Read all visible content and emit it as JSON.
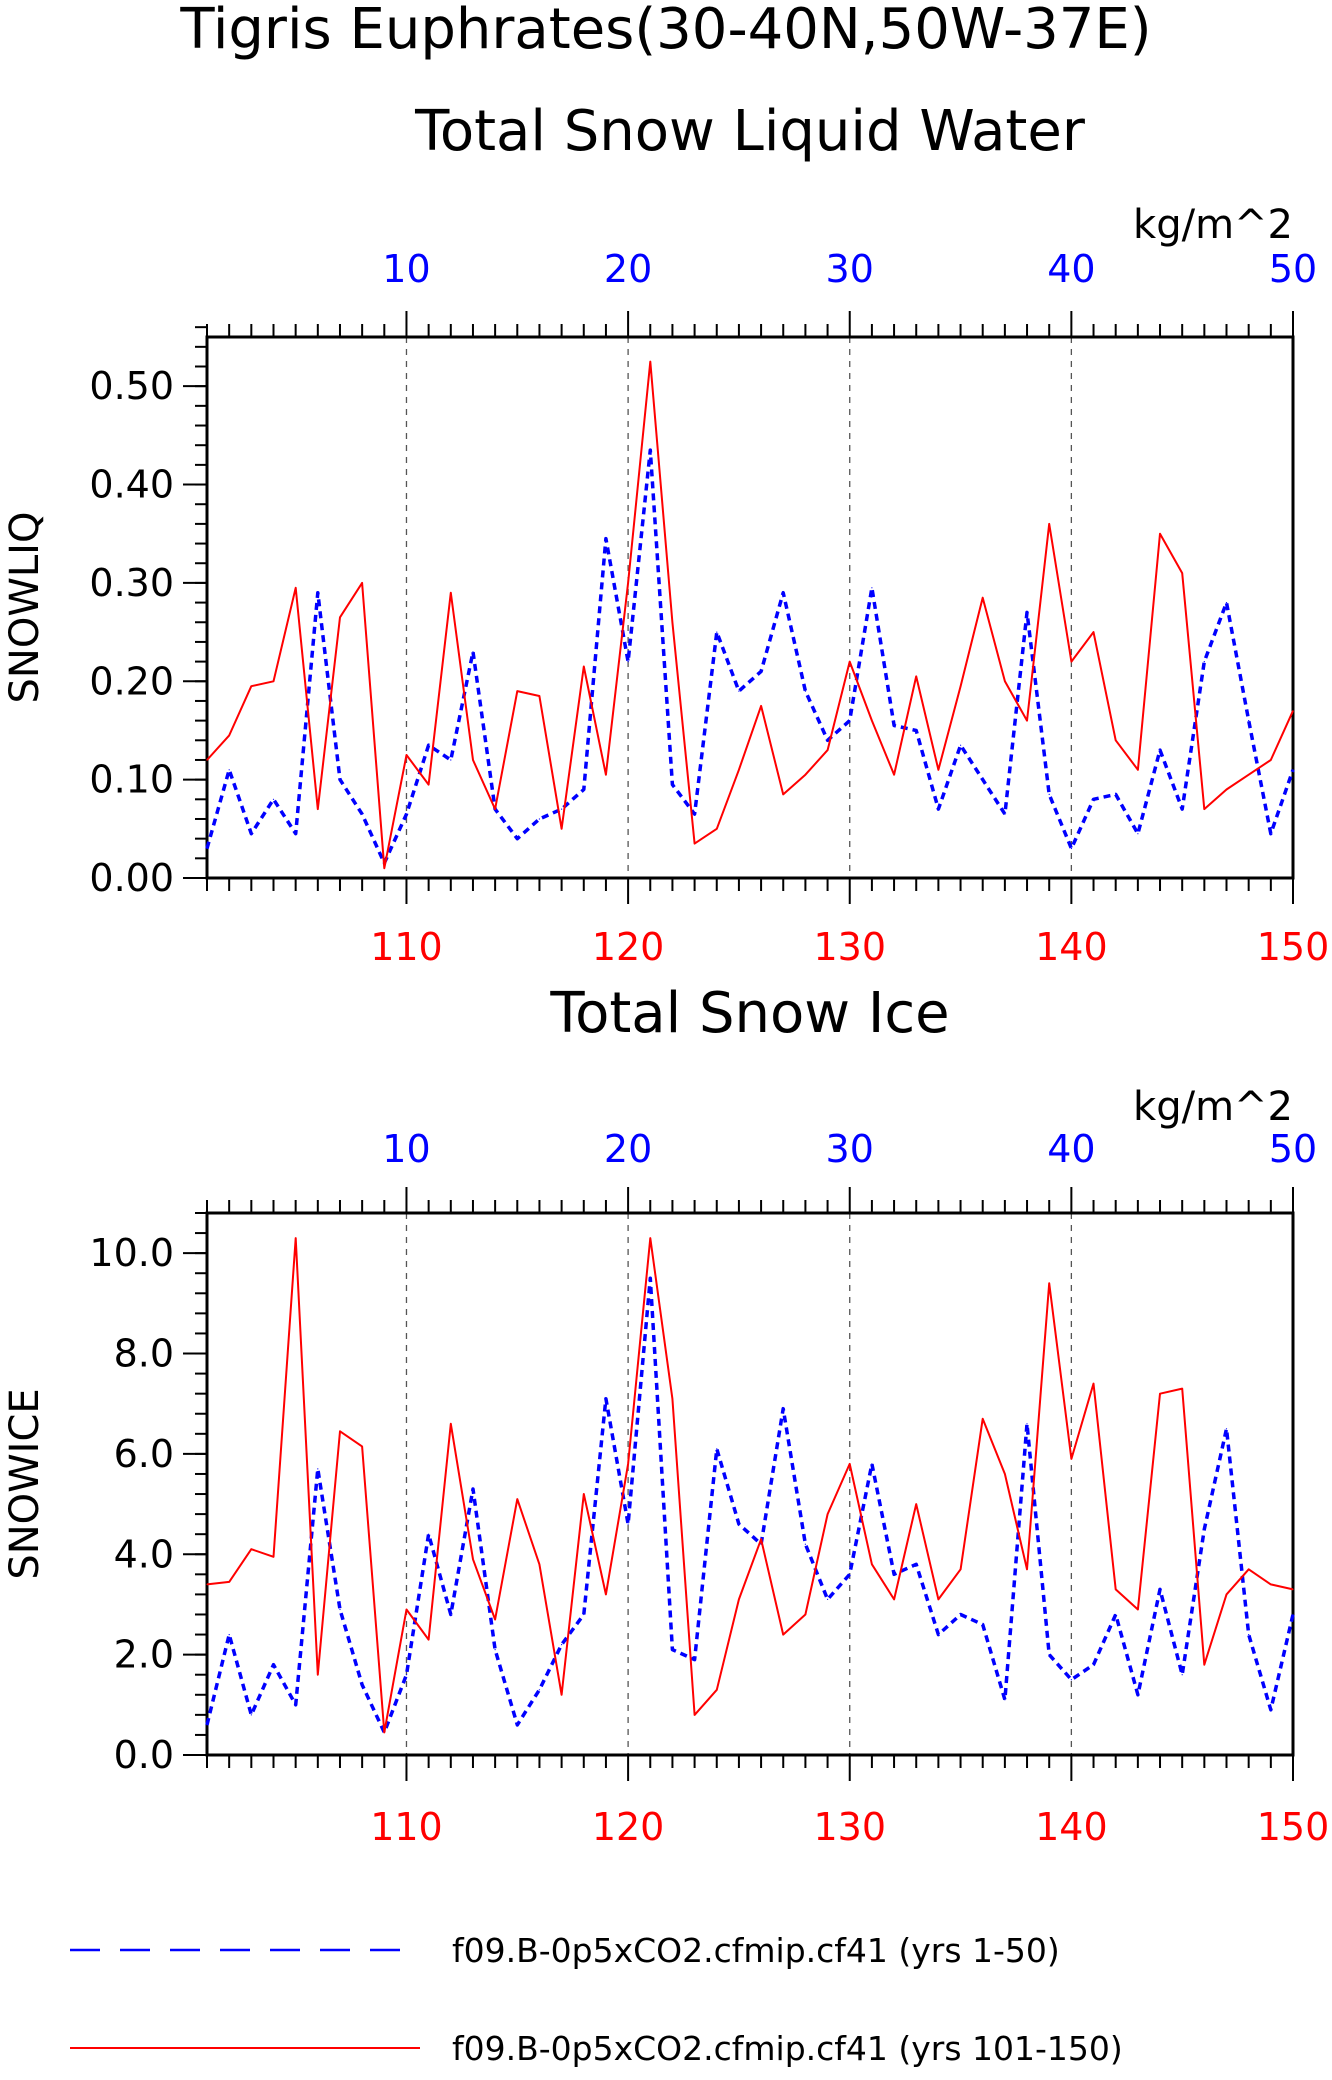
{
  "title_line1": "Tigris Euphrates(30-40N,50W-37E)",
  "units": "kg/m^2",
  "colors": {
    "series_a": "#0000ff",
    "series_b": "#ff0000",
    "frame": "#000000",
    "grid": "#555555"
  },
  "legend": [
    {
      "label": "f09.B-0p5xCO2.cfmip.cf41 (yrs 1-50)",
      "style": "dashed",
      "color": "#0000ff"
    },
    {
      "label": "f09.B-0p5xCO2.cfmip.cf41 (yrs 101-150)",
      "style": "solid",
      "color": "#ff0000"
    }
  ],
  "chart_data": [
    {
      "type": "line",
      "title": "Total Snow Liquid Water",
      "ylabel": "SNOWLIQ",
      "units": "kg/m^2",
      "ylim": [
        0,
        0.55
      ],
      "yticks": [
        0,
        0.1,
        0.2,
        0.3,
        0.4,
        0.5
      ],
      "ytick_labels": [
        "0.00",
        "0.10",
        "0.20",
        "0.30",
        "0.40",
        "0.50"
      ],
      "y_minor_step": 0.02,
      "bottom_axis": {
        "lim": [
          101,
          150
        ],
        "ticks": [
          110,
          120,
          130,
          140,
          150
        ],
        "tick_labels": [
          "110",
          "120",
          "130",
          "140",
          "150"
        ],
        "color": "#ff0000"
      },
      "top_axis": {
        "lim": [
          1,
          50
        ],
        "ticks": [
          10,
          20,
          30,
          40,
          50
        ],
        "tick_labels": [
          "10",
          "20",
          "30",
          "40",
          "50"
        ],
        "color": "#0000ff"
      },
      "grid": "vertical dashed at major ticks",
      "series": [
        {
          "axis": "top",
          "style": "dashed",
          "color": "#0000ff",
          "x": [
            1,
            2,
            3,
            4,
            5,
            6,
            7,
            8,
            9,
            10,
            11,
            12,
            13,
            14,
            15,
            16,
            17,
            18,
            19,
            20,
            21,
            22,
            23,
            24,
            25,
            26,
            27,
            28,
            29,
            30,
            31,
            32,
            33,
            34,
            35,
            36,
            37,
            38,
            39,
            40,
            41,
            42,
            43,
            44,
            45,
            46,
            47,
            48,
            49,
            50
          ],
          "values": [
            0.03,
            0.11,
            0.045,
            0.08,
            0.045,
            0.29,
            0.1,
            0.065,
            0.015,
            0.065,
            0.135,
            0.12,
            0.23,
            0.07,
            0.04,
            0.06,
            0.07,
            0.09,
            0.345,
            0.22,
            0.435,
            0.095,
            0.065,
            0.25,
            0.19,
            0.21,
            0.29,
            0.19,
            0.14,
            0.16,
            0.295,
            0.155,
            0.15,
            0.07,
            0.135,
            0.1,
            0.065,
            0.27,
            0.085,
            0.03,
            0.08,
            0.085,
            0.045,
            0.13,
            0.07,
            0.22,
            0.28,
            0.16,
            0.045,
            0.11
          ]
        },
        {
          "axis": "bottom",
          "style": "solid",
          "color": "#ff0000",
          "x": [
            101,
            102,
            103,
            104,
            105,
            106,
            107,
            108,
            109,
            110,
            111,
            112,
            113,
            114,
            115,
            116,
            117,
            118,
            119,
            120,
            121,
            122,
            123,
            124,
            125,
            126,
            127,
            128,
            129,
            130,
            131,
            132,
            133,
            134,
            135,
            136,
            137,
            138,
            139,
            140,
            141,
            142,
            143,
            144,
            145,
            146,
            147,
            148,
            149,
            150
          ],
          "values": [
            0.12,
            0.145,
            0.195,
            0.2,
            0.295,
            0.07,
            0.265,
            0.3,
            0.01,
            0.125,
            0.095,
            0.29,
            0.12,
            0.07,
            0.19,
            0.185,
            0.05,
            0.215,
            0.105,
            0.3,
            0.525,
            0.26,
            0.035,
            0.05,
            0.11,
            0.175,
            0.085,
            0.105,
            0.13,
            0.22,
            0.16,
            0.105,
            0.205,
            0.11,
            0.195,
            0.285,
            0.2,
            0.16,
            0.36,
            0.22,
            0.25,
            0.14,
            0.11,
            0.35,
            0.31,
            0.07,
            0.09,
            0.105,
            0.12,
            0.17
          ]
        }
      ]
    },
    {
      "type": "line",
      "title": "Total Snow Ice",
      "ylabel": "SNOWICE",
      "units": "kg/m^2",
      "ylim": [
        0,
        10.8
      ],
      "yticks": [
        0,
        2,
        4,
        6,
        8,
        10
      ],
      "ytick_labels": [
        "0.0",
        "2.0",
        "4.0",
        "6.0",
        "8.0",
        "10.0"
      ],
      "y_minor_step": 0.4,
      "bottom_axis": {
        "lim": [
          101,
          150
        ],
        "ticks": [
          110,
          120,
          130,
          140,
          150
        ],
        "tick_labels": [
          "110",
          "120",
          "130",
          "140",
          "150"
        ],
        "color": "#ff0000"
      },
      "top_axis": {
        "lim": [
          1,
          50
        ],
        "ticks": [
          10,
          20,
          30,
          40,
          50
        ],
        "tick_labels": [
          "10",
          "20",
          "30",
          "40",
          "50"
        ],
        "color": "#0000ff"
      },
      "grid": "vertical dashed at major ticks",
      "series": [
        {
          "axis": "top",
          "style": "dashed",
          "color": "#0000ff",
          "x": [
            1,
            2,
            3,
            4,
            5,
            6,
            7,
            8,
            9,
            10,
            11,
            12,
            13,
            14,
            15,
            16,
            17,
            18,
            19,
            20,
            21,
            22,
            23,
            24,
            25,
            26,
            27,
            28,
            29,
            30,
            31,
            32,
            33,
            34,
            35,
            36,
            37,
            38,
            39,
            40,
            41,
            42,
            43,
            44,
            45,
            46,
            47,
            48,
            49,
            50
          ],
          "values": [
            0.6,
            2.4,
            0.8,
            1.8,
            1.0,
            5.7,
            2.9,
            1.4,
            0.45,
            1.6,
            4.4,
            2.8,
            5.3,
            2.1,
            0.6,
            1.3,
            2.2,
            2.8,
            7.1,
            4.6,
            9.5,
            2.1,
            1.9,
            6.1,
            4.6,
            4.2,
            6.9,
            4.2,
            3.1,
            3.6,
            5.8,
            3.6,
            3.8,
            2.4,
            2.8,
            2.6,
            1.1,
            6.6,
            2.0,
            1.5,
            1.8,
            2.8,
            1.2,
            3.3,
            1.6,
            4.5,
            6.5,
            2.4,
            0.9,
            2.8
          ]
        },
        {
          "axis": "bottom",
          "style": "solid",
          "color": "#ff0000",
          "x": [
            101,
            102,
            103,
            104,
            105,
            106,
            107,
            108,
            109,
            110,
            111,
            112,
            113,
            114,
            115,
            116,
            117,
            118,
            119,
            120,
            121,
            122,
            123,
            124,
            125,
            126,
            127,
            128,
            129,
            130,
            131,
            132,
            133,
            134,
            135,
            136,
            137,
            138,
            139,
            140,
            141,
            142,
            143,
            144,
            145,
            146,
            147,
            148,
            149,
            150
          ],
          "values": [
            3.4,
            3.45,
            4.1,
            3.95,
            10.3,
            1.6,
            6.45,
            6.15,
            0.45,
            2.9,
            2.3,
            6.6,
            3.9,
            2.7,
            5.1,
            3.8,
            1.2,
            5.2,
            3.2,
            5.8,
            10.3,
            7.1,
            0.8,
            1.3,
            3.1,
            4.3,
            2.4,
            2.8,
            4.8,
            5.8,
            3.8,
            3.1,
            5.0,
            3.1,
            3.7,
            6.7,
            5.6,
            3.7,
            9.4,
            5.9,
            7.4,
            3.3,
            2.9,
            7.2,
            7.3,
            1.8,
            3.2,
            3.7,
            3.4,
            3.3
          ]
        }
      ]
    }
  ]
}
